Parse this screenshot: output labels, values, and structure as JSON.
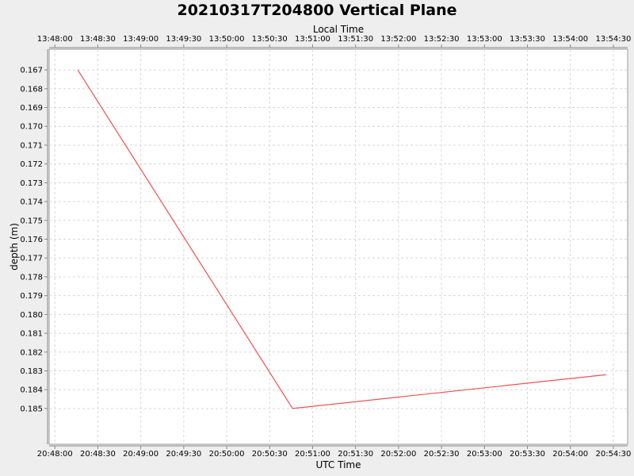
{
  "chart_data": {
    "type": "line",
    "title": "20210317T204800 Vertical Plane",
    "xlabel": "UTC Time",
    "x2label": "Local Time",
    "ylabel": "depth (m)",
    "xlim": [
      "20:47:56",
      "20:54:40"
    ],
    "ylim": [
      0.1659,
      0.1869
    ],
    "y_inverted": true,
    "x_ticks": [
      "20:48:00",
      "20:48:30",
      "20:49:00",
      "20:49:30",
      "20:50:00",
      "20:50:30",
      "20:51:00",
      "20:51:30",
      "20:52:00",
      "20:52:30",
      "20:53:00",
      "20:53:30",
      "20:54:00",
      "20:54:30"
    ],
    "x2_ticks": [
      "13:48:00",
      "13:48:30",
      "13:49:00",
      "13:49:30",
      "13:50:00",
      "13:50:30",
      "13:51:00",
      "13:51:30",
      "13:52:00",
      "13:52:30",
      "13:53:00",
      "13:53:30",
      "13:54:00",
      "13:54:30"
    ],
    "y_ticks": [
      "0.167",
      "0.168",
      "0.169",
      "0.170",
      "0.171",
      "0.172",
      "0.173",
      "0.174",
      "0.175",
      "0.176",
      "0.177",
      "0.178",
      "0.179",
      "0.180",
      "0.181",
      "0.182",
      "0.183",
      "0.184",
      "0.185"
    ],
    "grid": true,
    "series": [
      {
        "color": "#f05050",
        "points": [
          {
            "x": "20:48:16",
            "y": 0.167
          },
          {
            "x": "20:50:46",
            "y": 0.185
          },
          {
            "x": "20:54:25",
            "y": 0.1832
          }
        ]
      }
    ]
  }
}
